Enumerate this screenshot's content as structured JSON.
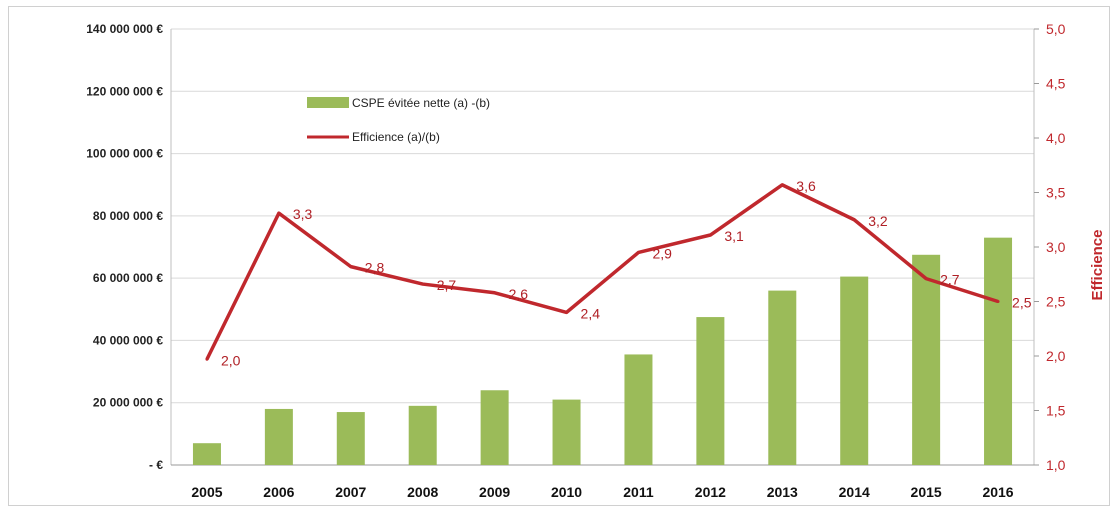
{
  "chart_data": {
    "type": "bar+line",
    "categories": [
      "2005",
      "2006",
      "2007",
      "2008",
      "2009",
      "2010",
      "2011",
      "2012",
      "2013",
      "2014",
      "2015",
      "2016"
    ],
    "series": [
      {
        "name": "CSPE évitée nette (a) -(b)",
        "kind": "bar",
        "axis": "left",
        "color": "#9bbb59",
        "values": [
          7000000,
          18000000,
          17000000,
          19000000,
          24000000,
          21000000,
          35500000,
          47500000,
          56000000,
          60500000,
          67500000,
          73000000
        ]
      },
      {
        "name": "Efficience (a)/(b)",
        "kind": "line",
        "axis": "right",
        "color": "#c0282d",
        "values": [
          1.97,
          3.31,
          2.82,
          2.66,
          2.58,
          2.4,
          2.95,
          3.11,
          3.57,
          3.25,
          2.71,
          2.5
        ],
        "data_labels": [
          "2,0",
          "3,3",
          "2,8",
          "2,7",
          "2,6",
          "2,4",
          "2,9",
          "3,1",
          "3,6",
          "3,2",
          "2,7",
          "2,5"
        ]
      }
    ],
    "y_left": {
      "ylim": [
        0,
        140000000
      ],
      "tick_labels": [
        "-   €",
        "20 000 000 €",
        "40 000 000 €",
        "60 000 000 €",
        "80 000 000 €",
        "100 000 000 €",
        "120 000 000 €",
        "140 000 000 €"
      ]
    },
    "y_right": {
      "label": "Efficience",
      "ylim": [
        1.0,
        5.0
      ],
      "tick_labels": [
        "1,0",
        "1,5",
        "2,0",
        "2,5",
        "3,0",
        "3,5",
        "4,0",
        "4,5",
        "5,0"
      ]
    },
    "grid": "horizontal",
    "legend_position": "inside-top-left"
  }
}
